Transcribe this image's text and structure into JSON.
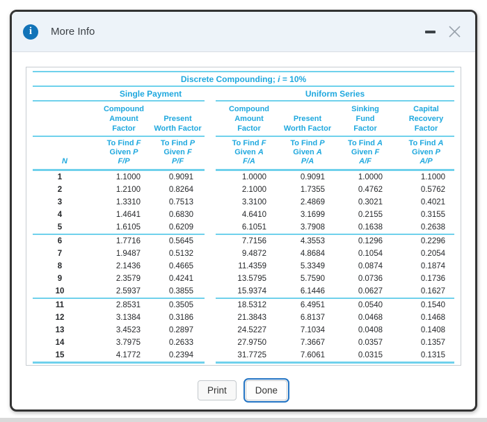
{
  "colors": {
    "accent_cyan": "#1fa8de",
    "rule_cyan": "#6fd1ec",
    "header_bg": "#edf3f9",
    "info_blue": "#1273b8",
    "frame": "#333333",
    "focus_blue": "#2273c3"
  },
  "window": {
    "title": "More Info"
  },
  "icons": {
    "info": "i"
  },
  "table": {
    "title": {
      "prefix": "Discrete Compounding; ",
      "variable": "i",
      "suffix": " = 10%"
    },
    "groups": {
      "single_payment": "Single Payment",
      "uniform_series": "Uniform Series"
    },
    "n_label": "N",
    "columns": [
      {
        "factor": "Compound\nAmount\nFactor",
        "find": "To Find ",
        "find_var": "F",
        "given": "Given ",
        "given_var": "P",
        "ratio": "F/P"
      },
      {
        "factor": "Present\nWorth Factor",
        "find": "To Find ",
        "find_var": "P",
        "given": "Given ",
        "given_var": "F",
        "ratio": "P/F"
      },
      {
        "factor": "Compound\nAmount\nFactor",
        "find": "To Find ",
        "find_var": "F",
        "given": "Given ",
        "given_var": "A",
        "ratio": "F/A"
      },
      {
        "factor": "Present\nWorth Factor",
        "find": "To Find ",
        "find_var": "P",
        "given": "Given ",
        "given_var": "A",
        "ratio": "P/A"
      },
      {
        "factor": "Sinking\nFund\nFactor",
        "find": "To Find ",
        "find_var": "A",
        "given": "Given ",
        "given_var": "F",
        "ratio": "A/F"
      },
      {
        "factor": "Capital\nRecovery\nFactor",
        "find": "To Find ",
        "find_var": "A",
        "given": "Given ",
        "given_var": "P",
        "ratio": "A/P"
      }
    ],
    "rows": [
      {
        "n": "1",
        "values": [
          "1.1000",
          "0.9091",
          "1.0000",
          "0.9091",
          "1.0000",
          "1.1000"
        ]
      },
      {
        "n": "2",
        "values": [
          "1.2100",
          "0.8264",
          "2.1000",
          "1.7355",
          "0.4762",
          "0.5762"
        ]
      },
      {
        "n": "3",
        "values": [
          "1.3310",
          "0.7513",
          "3.3100",
          "2.4869",
          "0.3021",
          "0.4021"
        ]
      },
      {
        "n": "4",
        "values": [
          "1.4641",
          "0.6830",
          "4.6410",
          "3.1699",
          "0.2155",
          "0.3155"
        ]
      },
      {
        "n": "5",
        "values": [
          "1.6105",
          "0.6209",
          "6.1051",
          "3.7908",
          "0.1638",
          "0.2638"
        ]
      },
      {
        "n": "6",
        "values": [
          "1.7716",
          "0.5645",
          "7.7156",
          "4.3553",
          "0.1296",
          "0.2296"
        ]
      },
      {
        "n": "7",
        "values": [
          "1.9487",
          "0.5132",
          "9.4872",
          "4.8684",
          "0.1054",
          "0.2054"
        ]
      },
      {
        "n": "8",
        "values": [
          "2.1436",
          "0.4665",
          "11.4359",
          "5.3349",
          "0.0874",
          "0.1874"
        ]
      },
      {
        "n": "9",
        "values": [
          "2.3579",
          "0.4241",
          "13.5795",
          "5.7590",
          "0.0736",
          "0.1736"
        ]
      },
      {
        "n": "10",
        "values": [
          "2.5937",
          "0.3855",
          "15.9374",
          "6.1446",
          "0.0627",
          "0.1627"
        ]
      },
      {
        "n": "11",
        "values": [
          "2.8531",
          "0.3505",
          "18.5312",
          "6.4951",
          "0.0540",
          "0.1540"
        ]
      },
      {
        "n": "12",
        "values": [
          "3.1384",
          "0.3186",
          "21.3843",
          "6.8137",
          "0.0468",
          "0.1468"
        ]
      },
      {
        "n": "13",
        "values": [
          "3.4523",
          "0.2897",
          "24.5227",
          "7.1034",
          "0.0408",
          "0.1408"
        ]
      },
      {
        "n": "14",
        "values": [
          "3.7975",
          "0.2633",
          "27.9750",
          "7.3667",
          "0.0357",
          "0.1357"
        ]
      },
      {
        "n": "15",
        "values": [
          "4.1772",
          "0.2394",
          "31.7725",
          "7.6061",
          "0.0315",
          "0.1315"
        ]
      }
    ]
  },
  "buttons": {
    "print": "Print",
    "done": "Done"
  }
}
